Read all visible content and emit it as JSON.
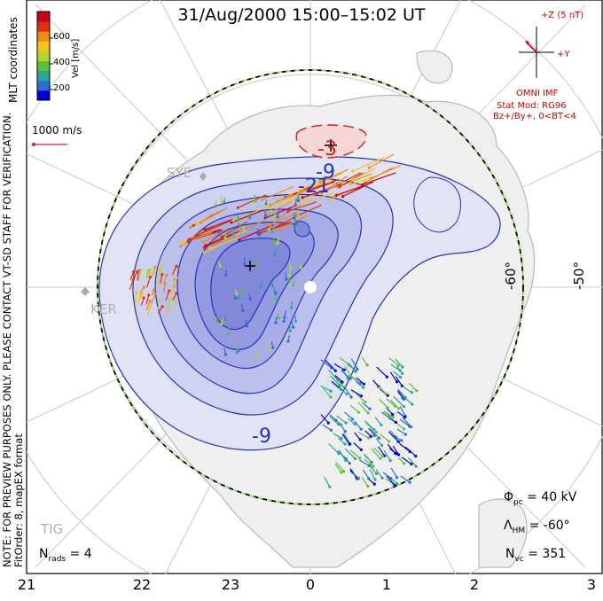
{
  "title": "31/Aug/2000 15:00–15:02 UT",
  "x_ticks": [
    "21",
    "22",
    "23",
    "0",
    "1",
    "2",
    "3"
  ],
  "lat_labels": [
    "-60°",
    "-50°"
  ],
  "colorbar": {
    "ticks": [
      "600",
      "400",
      "200"
    ],
    "label": "Vel [m/s]",
    "colors": [
      "#0000dd",
      "#2a6fd6",
      "#2aa39a",
      "#59c23a",
      "#b4d62a",
      "#f2c418",
      "#f08a14",
      "#e03012",
      "#c8001e"
    ]
  },
  "mlt_label": "MLT coordinates",
  "ref_vector_label": "1000 m/s",
  "side_note": [
    "NOTE: FOR PREVIEW PURPOSES ONLY. PLEASE CONTACT VT-SD STAFF FOR VERIFICATION.",
    "FitOrder: 8, mapEX format"
  ],
  "imf": {
    "z_label": "+Z (5 nT)",
    "y_label": "+Y",
    "source": "OMNI IMF",
    "stat_mod": "Stat Mod: RG96",
    "condition": "Bz+/By+, 0<BT<4"
  },
  "stations": [
    "SYE",
    "KER",
    "TIG"
  ],
  "contour_labels": [
    "-3",
    "-9",
    "-21",
    "-9"
  ],
  "stats": {
    "phi_pc": "40 kV",
    "lambda_hm": "-60°",
    "n_vc": "351",
    "n_rads": "4"
  }
}
